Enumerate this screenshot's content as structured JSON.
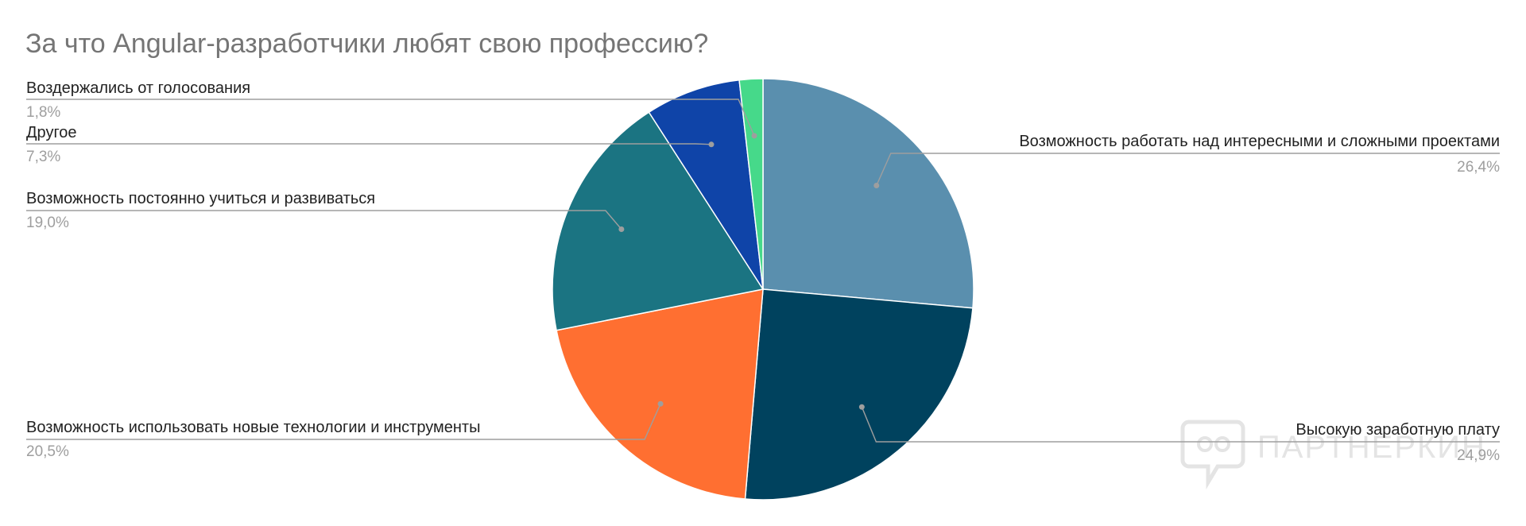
{
  "chart_data": {
    "type": "pie",
    "title": "За что Angular-разработчики любят свою профессию?",
    "slices": [
      {
        "label": "Возможность работать над интересными и сложными проектами",
        "value": 26.4,
        "value_label": "26,4%",
        "color": "#5a8fae"
      },
      {
        "label": "Высокую заработную плату",
        "value": 24.9,
        "value_label": "24,9%",
        "color": "#00425e"
      },
      {
        "label": "Возможность использовать новые технологии и инструменты",
        "value": 20.5,
        "value_label": "20,5%",
        "color": "#ff6f31"
      },
      {
        "label": "Возможность постоянно учиться и развиваться",
        "value": 19.0,
        "value_label": "19,0%",
        "color": "#1b7482"
      },
      {
        "label": "Другое",
        "value": 7.3,
        "value_label": "7,3%",
        "color": "#0f44a8"
      },
      {
        "label": "Воздержались от голосования",
        "value": 1.8,
        "value_label": "1,8%",
        "color": "#46d98a"
      }
    ],
    "start_angle_deg": 0,
    "direction": "clockwise"
  },
  "watermark": {
    "text": "ПАРТНЕРКИН"
  }
}
